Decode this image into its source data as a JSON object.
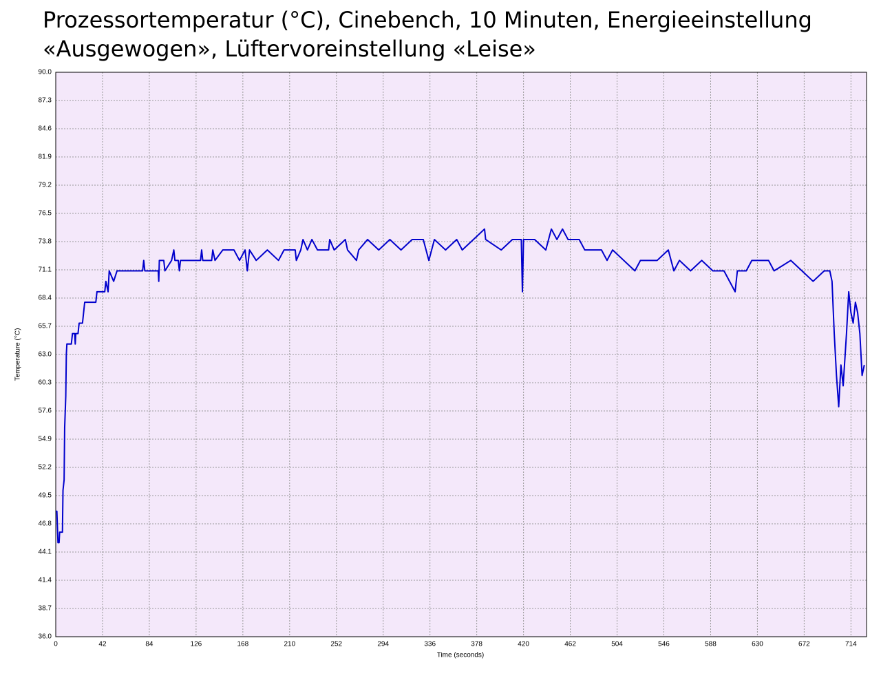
{
  "chart_data": {
    "type": "line",
    "title": [
      "Prozessortemperatur (°C), Cinebench, 10 Minuten, Energieeinstellung",
      "«Ausgewogen», Lüftervoreinstellung «Leise»"
    ],
    "x_label": "Time (seconds)",
    "y_label": "Temperature (°C)",
    "xlim": [
      0,
      728
    ],
    "ylim": [
      36,
      90
    ],
    "xticks": [
      0,
      42,
      84,
      126,
      168,
      210,
      252,
      294,
      336,
      378,
      420,
      462,
      504,
      546,
      588,
      630,
      672,
      714
    ],
    "yticks": [
      {
        "value": 36,
        "label": "36.0"
      },
      {
        "value": 38.7,
        "label": "38.7"
      },
      {
        "value": 41.4,
        "label": "41.4"
      },
      {
        "value": 44.1,
        "label": "44.1"
      },
      {
        "value": 46.8,
        "label": "46.8"
      },
      {
        "value": 49.5,
        "label": "49.5"
      },
      {
        "value": 52.2,
        "label": "52.2"
      },
      {
        "value": 54.9,
        "label": "54.9"
      },
      {
        "value": 57.6,
        "label": "57.6"
      },
      {
        "value": 60.3,
        "label": "60.3"
      },
      {
        "value": 63,
        "label": "63.0"
      },
      {
        "value": 65.7,
        "label": "65.7"
      },
      {
        "value": 68.4,
        "label": "68.4"
      },
      {
        "value": 71.1,
        "label": "71.1"
      },
      {
        "value": 73.8,
        "label": "73.8"
      },
      {
        "value": 76.5,
        "label": "76.5"
      },
      {
        "value": 79.2,
        "label": "79.2"
      },
      {
        "value": 81.9,
        "label": "81.9"
      },
      {
        "value": 84.6,
        "label": "84.6"
      },
      {
        "value": 87.3,
        "label": "87.3"
      },
      {
        "value": 90,
        "label": "90.0"
      }
    ],
    "grid": true,
    "background": "#f4e8fa",
    "series": [
      {
        "color": "#0000cc",
        "x": [
          0,
          1,
          2,
          3,
          3.5,
          6,
          6.5,
          7.5,
          8,
          9,
          9.5,
          10,
          14,
          15,
          17,
          17.5,
          18,
          20,
          21,
          24,
          25,
          26,
          36,
          37,
          44,
          45,
          47,
          48,
          52,
          55,
          78,
          79,
          80,
          92,
          92.5,
          93,
          97,
          98,
          104,
          106,
          107,
          110,
          111,
          112,
          130,
          131,
          132,
          140,
          141,
          143,
          150,
          160,
          165,
          170,
          172,
          174,
          180,
          190,
          200,
          205,
          215,
          216,
          220,
          222,
          226,
          230,
          235,
          245,
          246,
          250,
          260,
          262,
          270,
          272,
          280,
          290,
          300,
          310,
          320,
          330,
          335,
          340,
          350,
          360,
          365,
          375,
          385,
          386,
          400,
          410,
          418,
          419,
          420,
          430,
          440,
          445,
          450,
          455,
          460,
          470,
          475,
          490,
          495,
          500,
          510,
          520,
          525,
          540,
          550,
          555,
          560,
          570,
          580,
          590,
          600,
          610,
          612,
          620,
          625,
          640,
          645,
          660,
          670,
          680,
          690,
          695,
          697,
          699,
          701,
          703,
          705,
          707,
          710,
          712,
          714,
          716,
          718,
          720,
          722,
          724,
          726
        ],
        "values": [
          48,
          48,
          45,
          45,
          46,
          46,
          50,
          51,
          56,
          59,
          63,
          64,
          64,
          65,
          65,
          64,
          65,
          65,
          66,
          66,
          67,
          68,
          68,
          69,
          69,
          70,
          69,
          71,
          70,
          71,
          71,
          72,
          71,
          71,
          70,
          72,
          72,
          71,
          72,
          73,
          72,
          72,
          71,
          72,
          72,
          73,
          72,
          72,
          73,
          72,
          73,
          73,
          72,
          73,
          71,
          73,
          72,
          73,
          72,
          73,
          73,
          72,
          73,
          74,
          73,
          74,
          73,
          73,
          74,
          73,
          74,
          73,
          72,
          73,
          74,
          73,
          74,
          73,
          74,
          74,
          72,
          74,
          73,
          74,
          73,
          74,
          75,
          74,
          73,
          74,
          74,
          69,
          74,
          74,
          73,
          75,
          74,
          75,
          74,
          74,
          73,
          73,
          72,
          73,
          72,
          71,
          72,
          72,
          73,
          71,
          72,
          71,
          72,
          71,
          71,
          69,
          71,
          71,
          72,
          72,
          71,
          72,
          71,
          70,
          71,
          71,
          70,
          65,
          61,
          58,
          62,
          60,
          65,
          69,
          67,
          66,
          68,
          67,
          65,
          61,
          62
        ]
      }
    ]
  }
}
